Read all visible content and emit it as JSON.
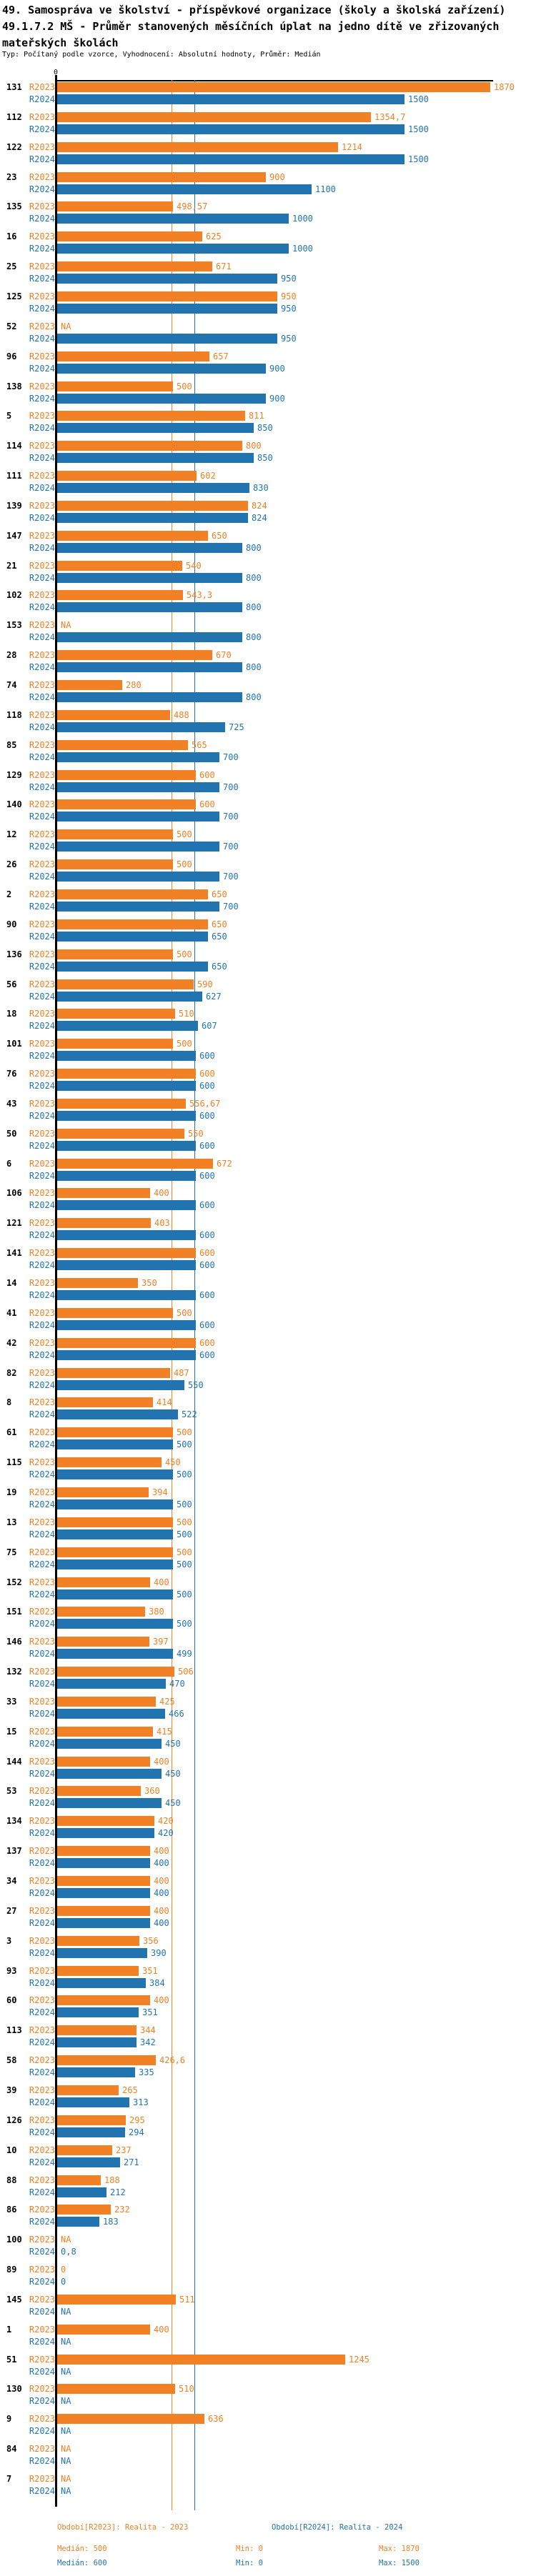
{
  "header": {
    "title_line1": "49. Samospráva ve školství - příspěvkové organizace (školy a školská zařízení)",
    "title_line2": "49.1.7.2 MŠ - Průměr stanovených měsíčních úplat na jedno dítě ve zřizovaných mateřských školách",
    "subtitle": "Typ: Počítaný podle vzorce, Vyhodnocení: Absolutní hodnoty, Průměr: Medián"
  },
  "axis": {
    "zero_label": "0"
  },
  "colors": {
    "r2023": "#F28024",
    "r2024": "#2274B0",
    "axis": "#000000"
  },
  "legend": {
    "r2023_label": "Období[R2023]: Realita - 2023",
    "r2024_label": "Období[R2024]: Realita - 2024",
    "r2023_median": "Medián: 500",
    "r2023_min": "Min: 0",
    "r2023_max": "Max: 1870",
    "r2024_median": "Medián: 600",
    "r2024_min": "Min: 0",
    "r2024_max": "Max: 1500",
    "na_text": "NA"
  },
  "chart_data": {
    "type": "bar",
    "orientation": "horizontal",
    "title": "49.1.7.2 MŠ - Průměr stanovených měsíčních úplat na jedno dítě ve zřizovaných mateřských školách",
    "value_axis_range": [
      0,
      1890
    ],
    "grid": false,
    "legend_position": "bottom",
    "medians": {
      "R2023": 500,
      "R2024": 600
    },
    "categories": [
      "131",
      "112",
      "122",
      "23",
      "135",
      "16",
      "25",
      "125",
      "52",
      "96",
      "138",
      "5",
      "114",
      "111",
      "139",
      "147",
      "21",
      "102",
      "153",
      "28",
      "74",
      "118",
      "85",
      "129",
      "140",
      "12",
      "26",
      "2",
      "90",
      "136",
      "56",
      "18",
      "101",
      "76",
      "43",
      "50",
      "6",
      "106",
      "121",
      "141",
      "14",
      "41",
      "42",
      "82",
      "8",
      "61",
      "115",
      "19",
      "13",
      "75",
      "152",
      "151",
      "146",
      "132",
      "33",
      "15",
      "144",
      "53",
      "134",
      "137",
      "34",
      "27",
      "3",
      "93",
      "60",
      "113",
      "58",
      "39",
      "126",
      "10",
      "88",
      "86",
      "100",
      "89",
      "145",
      "1",
      "51",
      "130",
      "9",
      "84",
      "7"
    ],
    "series": [
      {
        "name": "R2023",
        "values": [
          1870,
          1354.7,
          1214,
          900,
          498.57,
          625,
          671,
          950,
          null,
          657,
          500,
          811,
          800,
          602,
          824,
          650,
          540,
          543.3,
          null,
          670,
          280,
          488,
          565,
          600,
          600,
          500,
          500,
          650,
          650,
          500,
          590,
          510,
          500,
          600,
          556.67,
          550,
          672,
          400,
          403,
          600,
          350,
          500,
          600,
          487,
          414,
          500,
          450,
          394,
          500,
          500,
          400,
          380,
          397,
          506,
          425,
          415,
          400,
          360,
          420,
          400,
          400,
          400,
          356,
          351,
          400,
          344,
          426.6,
          265,
          295,
          237,
          188,
          232,
          null,
          0,
          511,
          400,
          1245,
          510,
          636,
          null,
          null
        ]
      },
      {
        "name": "R2024",
        "values": [
          1500,
          1500,
          1500,
          1100,
          1000,
          1000,
          950,
          950,
          950,
          900,
          900,
          850,
          850,
          830,
          824,
          800,
          800,
          800,
          800,
          800,
          800,
          725,
          700,
          700,
          700,
          700,
          700,
          700,
          650,
          650,
          627,
          607,
          600,
          600,
          600,
          600,
          600,
          600,
          600,
          600,
          600,
          600,
          600,
          550,
          522,
          500,
          500,
          500,
          500,
          500,
          500,
          500,
          499,
          470,
          466,
          450,
          450,
          450,
          420,
          400,
          400,
          400,
          390,
          384,
          351,
          342,
          335,
          313,
          294,
          271,
          212,
          183,
          0.8,
          0,
          null,
          null,
          null,
          null,
          null,
          null,
          null
        ]
      }
    ]
  }
}
